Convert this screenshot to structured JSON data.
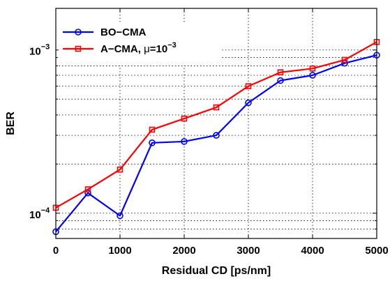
{
  "chart_data": {
    "type": "line",
    "title": "",
    "xlabel": "Residual CD [ps/nm]",
    "ylabel": "BER",
    "xlim": [
      0,
      5000
    ],
    "ylim": [
      7e-05,
      0.0018
    ],
    "yscale": "log",
    "grid": true,
    "legend_position": "top-left",
    "x_ticks": [
      0,
      1000,
      2000,
      3000,
      4000,
      5000
    ],
    "x_tick_labels": [
      "0",
      "1000",
      "2000",
      "3000",
      "4000",
      "5000"
    ],
    "y_major_ticks": [
      0.0001,
      0.001
    ],
    "y_tick_labels": [
      {
        "base": "10",
        "exp": "−4"
      },
      {
        "base": "10",
        "exp": "−3"
      }
    ],
    "x": [
      0,
      500,
      1000,
      1500,
      2000,
      2500,
      3000,
      3500,
      4000,
      4500,
      5000
    ],
    "series": [
      {
        "name": "BO−CMA",
        "color": "#0000ff",
        "marker": "circle",
        "values": [
          7.7e-05,
          0.000133,
          9.65e-05,
          0.00027,
          0.000275,
          0.0003,
          0.000475,
          0.00065,
          0.0007,
          0.00083,
          0.00093
        ]
      },
      {
        "name_prefix": "A−CMA, ",
        "name_mu": "μ",
        "name_rest": "=10",
        "name_exp": "−3",
        "color": "#ff0000",
        "marker": "square",
        "values": [
          0.000108,
          0.00014,
          0.000185,
          0.000325,
          0.00038,
          0.000445,
          0.0006,
          0.00073,
          0.00077,
          0.00087,
          0.00112
        ]
      }
    ]
  }
}
